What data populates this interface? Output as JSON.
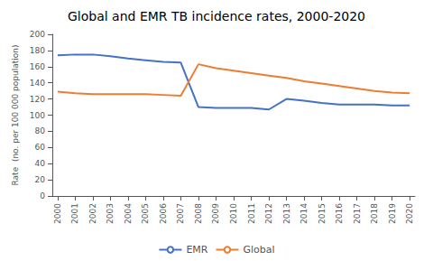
{
  "chart_data": {
    "type": "line",
    "title": "Global and EMR TB incidence rates, 2000-2020",
    "x": [
      2000,
      2001,
      2002,
      2003,
      2004,
      2005,
      2006,
      2007,
      2008,
      2009,
      2010,
      2011,
      2012,
      2013,
      2014,
      2015,
      2016,
      2017,
      2018,
      2019,
      2020
    ],
    "series": [
      {
        "name": "EMR",
        "color": "#4472C4",
        "values": [
          174,
          175,
          175,
          173,
          170,
          168,
          166,
          165,
          110,
          109,
          109,
          109,
          107,
          120,
          118,
          115,
          113,
          113,
          113,
          112,
          112
        ]
      },
      {
        "name": "Global",
        "color": "#ED7D31",
        "values": [
          129,
          127,
          126,
          126,
          126,
          126,
          125,
          124,
          163,
          158,
          155,
          152,
          149,
          146,
          142,
          139,
          136,
          133,
          130,
          128,
          127
        ]
      }
    ],
    "xlim": [
      1999.7,
      2020.3
    ],
    "xticks": [
      2000,
      2001,
      2002,
      2003,
      2004,
      2005,
      2006,
      2007,
      2008,
      2009,
      2010,
      2011,
      2012,
      2013,
      2014,
      2015,
      2016,
      2017,
      2018,
      2019,
      2020
    ],
    "ylim": [
      0,
      200
    ],
    "yticks": [
      0,
      20,
      40,
      60,
      80,
      100,
      120,
      140,
      160,
      180,
      200
    ],
    "ylabel": "Rate  (no. per 100 000 population)",
    "grid": false,
    "legend": "bottom"
  }
}
